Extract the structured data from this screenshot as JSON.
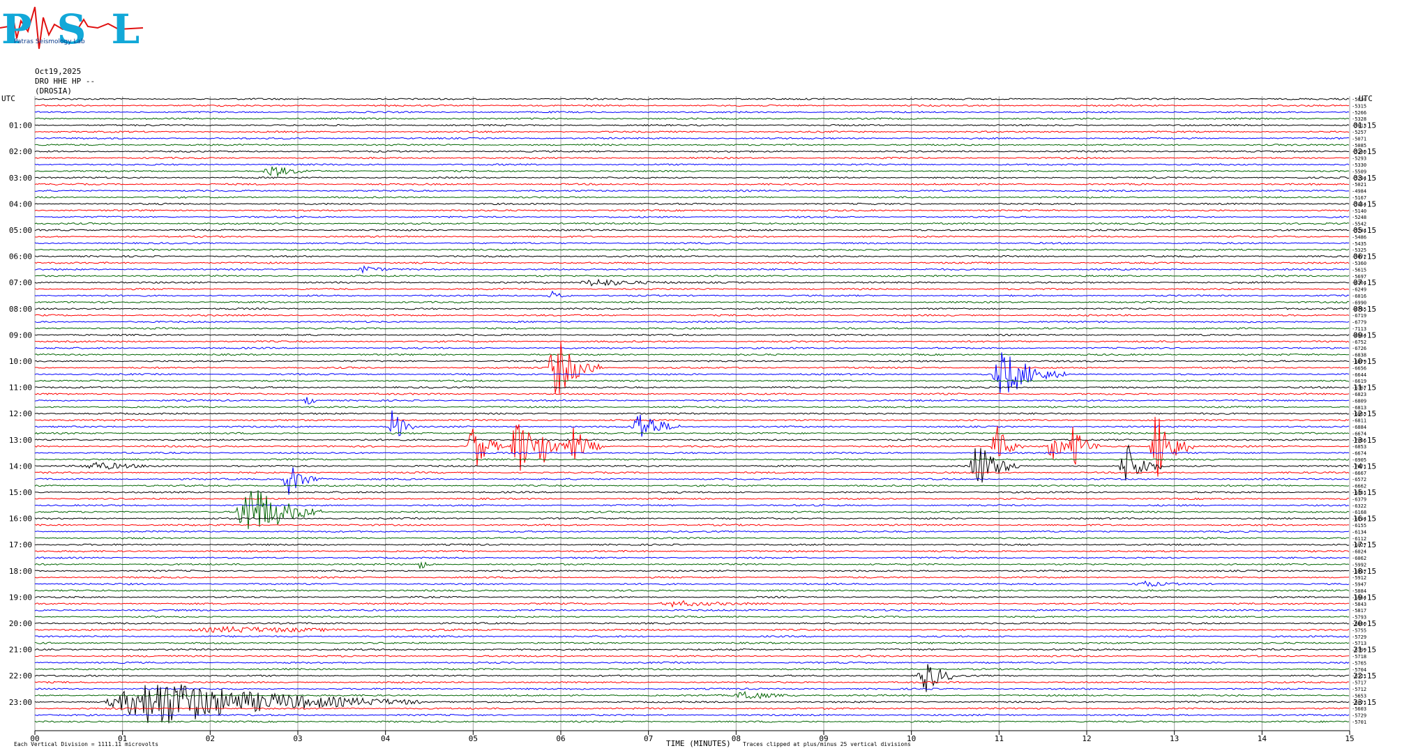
{
  "header": {
    "logo_text": "PSL",
    "logo_sub": "Patras Seismology Lab",
    "date": "Oct19,2025",
    "station": "DRO HHE HP --",
    "location": "(DROSIA)"
  },
  "footer": {
    "vertical_division": "Each Vertical Division = 1111.11 microvolts",
    "xlabel": "TIME (MINUTES)",
    "clip_note": "Traces clipped at plus/minus 25 vertical divisions"
  },
  "chart_data": {
    "type": "line",
    "title": "",
    "xlabel": "TIME (MINUTES)",
    "ylabel": "UTC",
    "xlim": [
      0,
      15
    ],
    "x_ticks": [
      "00",
      "01",
      "02",
      "03",
      "04",
      "05",
      "06",
      "07",
      "08",
      "09",
      "10",
      "11",
      "12",
      "13",
      "14",
      "15"
    ],
    "left_axis_title": "UTC",
    "right_axis_title": "UTC",
    "left_ticks": [
      "01:00",
      "02:00",
      "03:00",
      "04:00",
      "05:00",
      "06:00",
      "07:00",
      "08:00",
      "09:00",
      "10:00",
      "11:00",
      "12:00",
      "13:00",
      "14:00",
      "15:00",
      "16:00",
      "17:00",
      "18:00",
      "19:00",
      "20:00",
      "21:00",
      "22:00",
      "23:00"
    ],
    "right_ticks": [
      "01:15",
      "02:15",
      "03:15",
      "04:15",
      "05:15",
      "06:15",
      "07:15",
      "08:15",
      "09:15",
      "10:15",
      "11:15",
      "12:15",
      "13:15",
      "14:15",
      "15:15",
      "16:15",
      "17:15",
      "18:15",
      "19:15",
      "20:15",
      "21:15",
      "22:15",
      "23:15"
    ],
    "trace_colors": [
      "#000000",
      "#ff0000",
      "#0000ff",
      "#006400"
    ],
    "trace_offsets": [
      "-5630",
      "-5315",
      "-5266",
      "-5328",
      "-5613",
      "-5257",
      "-5071",
      "-5085",
      "-5280",
      "-5293",
      "-5330",
      "-5509",
      "-5294",
      "-5021",
      "-4984",
      "-5167",
      "-5154",
      "-5140",
      "-5248",
      "-5542",
      "-5284",
      "-5486",
      "-5435",
      "-5325",
      "-5472",
      "-5360",
      "-5615",
      "-5697",
      "-6204",
      "-6249",
      "-6016",
      "-6990",
      "-6765",
      "-6719",
      "-6779",
      "-7113",
      "-6864",
      "-6752",
      "-6726",
      "-6838",
      "-6879",
      "-6656",
      "-6644",
      "-6619",
      "-6767",
      "-6823",
      "-6809",
      "-6813",
      "-6863",
      "-6811",
      "-6884",
      "-6674",
      "-7066",
      "-6853",
      "-6674",
      "-6905",
      "-7071",
      "-6667",
      "-6572",
      "-6662",
      "-6451",
      "-6379",
      "-6322",
      "-6168",
      "-6194",
      "-6155",
      "-6134",
      "-6112",
      "-6027",
      "-6024",
      "-6062",
      "-5992",
      "-5937",
      "-5912",
      "-5947",
      "-5884",
      "-5864",
      "-5843",
      "-5817",
      "-5793",
      "-5660",
      "-5755",
      "-5729",
      "-5713",
      "-5799",
      "-5718",
      "-5765",
      "-5704",
      "-5721",
      "-5717",
      "-5712",
      "-5653",
      "-5671",
      "-5603",
      "-5729",
      "-5701"
    ],
    "events": [
      {
        "row": 11,
        "minute": 2.7,
        "amp": 1.4,
        "width": 0.4
      },
      {
        "row": 26,
        "minute": 3.75,
        "amp": 0.8,
        "width": 0.3
      },
      {
        "row": 28,
        "minute": 6.4,
        "amp": 0.9,
        "width": 0.8
      },
      {
        "row": 30,
        "minute": 5.9,
        "amp": 1.0,
        "width": 0.2
      },
      {
        "row": 41,
        "minute": 5.95,
        "amp": 7.0,
        "width": 0.45
      },
      {
        "row": 42,
        "minute": 11.05,
        "amp": 5.5,
        "width": 0.6
      },
      {
        "row": 46,
        "minute": 3.1,
        "amp": 1.2,
        "width": 0.15
      },
      {
        "row": 50,
        "minute": 4.08,
        "amp": 5.0,
        "width": 0.2
      },
      {
        "row": 50,
        "minute": 6.9,
        "amp": 4.0,
        "width": 0.4
      },
      {
        "row": 53,
        "minute": 5.0,
        "amp": 6.0,
        "width": 0.3
      },
      {
        "row": 53,
        "minute": 5.5,
        "amp": 8.0,
        "width": 0.3
      },
      {
        "row": 53,
        "minute": 5.78,
        "amp": 5.5,
        "width": 0.25
      },
      {
        "row": 53,
        "minute": 6.15,
        "amp": 4.5,
        "width": 0.3
      },
      {
        "row": 53,
        "minute": 10.97,
        "amp": 5.0,
        "width": 0.25
      },
      {
        "row": 53,
        "minute": 11.6,
        "amp": 4.0,
        "width": 0.2
      },
      {
        "row": 53,
        "minute": 11.85,
        "amp": 5.0,
        "width": 0.25
      },
      {
        "row": 53,
        "minute": 12.8,
        "amp": 8.5,
        "width": 0.35
      },
      {
        "row": 56,
        "minute": 10.75,
        "amp": 6.0,
        "width": 0.4
      },
      {
        "row": 56,
        "minute": 12.45,
        "amp": 5.5,
        "width": 0.35
      },
      {
        "row": 56,
        "minute": 0.7,
        "amp": 0.8,
        "width": 0.8
      },
      {
        "row": 58,
        "minute": 2.9,
        "amp": 3.5,
        "width": 0.35
      },
      {
        "row": 63,
        "minute": 2.45,
        "amp": 7.0,
        "width": 0.7
      },
      {
        "row": 77,
        "minute": 7.3,
        "amp": 0.7,
        "width": 0.8
      },
      {
        "row": 81,
        "minute": 2.2,
        "amp": 0.6,
        "width": 2.2
      },
      {
        "row": 88,
        "minute": 10.15,
        "amp": 4.0,
        "width": 0.35
      },
      {
        "row": 91,
        "minute": 8.1,
        "amp": 1.2,
        "width": 0.5
      },
      {
        "row": 92,
        "minute": 1.4,
        "amp": 5.5,
        "width": 2.5
      },
      {
        "row": 74,
        "minute": 12.6,
        "amp": 0.8,
        "width": 0.4
      },
      {
        "row": 71,
        "minute": 4.4,
        "amp": 1.0,
        "width": 0.15
      }
    ]
  }
}
